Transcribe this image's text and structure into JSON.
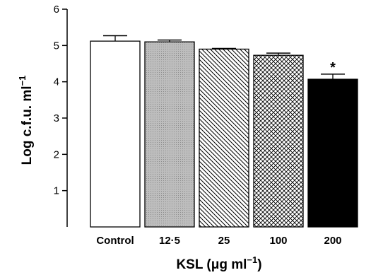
{
  "chart_data": {
    "type": "bar",
    "categories": [
      "Control",
      "12·5",
      "25",
      "100",
      "200"
    ],
    "values": [
      5.12,
      5.1,
      4.9,
      4.73,
      4.07
    ],
    "errors": [
      0.15,
      0.05,
      0.02,
      0.06,
      0.14
    ],
    "annotations": [
      "",
      "",
      "",
      "",
      "*"
    ],
    "fills": [
      "white",
      "gray-dotted",
      "diagonal-hatch",
      "cross-hatch",
      "black"
    ],
    "ylabel_parts": {
      "main": "Log c.f.u. ml",
      "sup": "−1"
    },
    "xlabel_parts": {
      "pre": "KSL (",
      "mu": "μ",
      "mid": "g ml",
      "sup": "−1",
      "post": ")"
    },
    "yticks": [
      "1",
      "2",
      "3",
      "4",
      "5",
      "6"
    ],
    "ylim": [
      0,
      6
    ],
    "grid": false
  }
}
